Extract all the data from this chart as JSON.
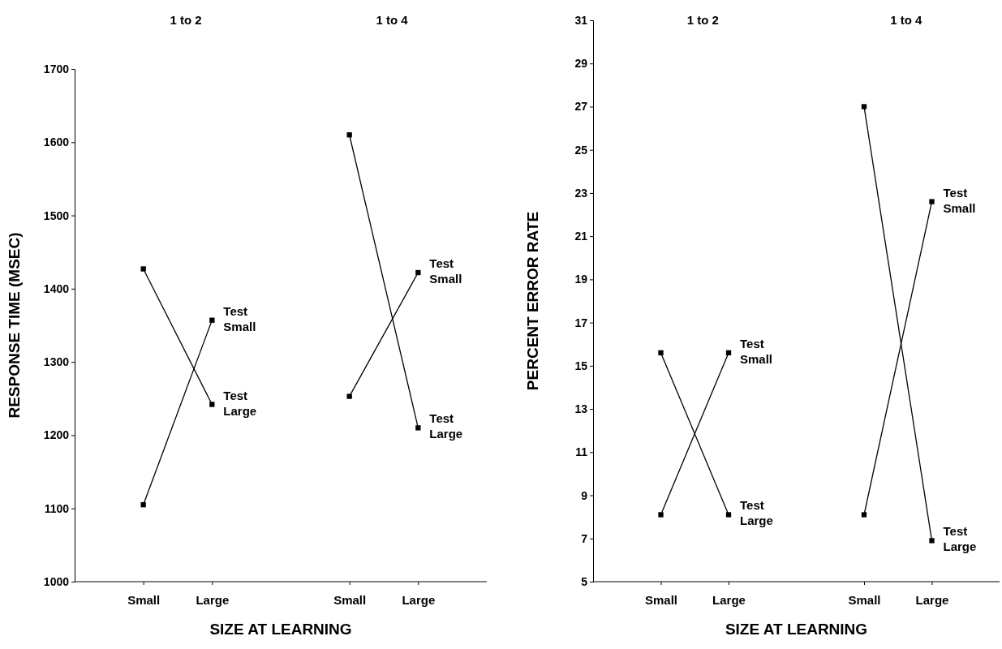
{
  "chart_data": [
    {
      "type": "line",
      "xlabel": "SIZE AT LEARNING",
      "ylabel": "RESPONSE TIME (MSEC)",
      "annotations": [
        "1 to 2",
        "1 to 4"
      ],
      "categories": [
        "Small",
        "Large",
        null,
        "Small",
        "Large"
      ],
      "ylim": [
        1000,
        1700
      ],
      "yticks": [
        1000,
        1100,
        1200,
        1300,
        1400,
        1500,
        1600,
        1700
      ],
      "grid": false,
      "marker": "square",
      "line_style": "solid",
      "series": [
        {
          "name": "Test Small",
          "color": "#000000",
          "values": [
            1105,
            1357,
            null,
            null,
            null
          ]
        },
        {
          "name": "Test Large",
          "color": "#000000",
          "values": [
            1427,
            1242,
            null,
            null,
            null
          ]
        },
        {
          "name": "Test Small",
          "color": "#000000",
          "values": [
            null,
            null,
            null,
            1253,
            1422
          ]
        },
        {
          "name": "Test Large",
          "color": "#000000",
          "values": [
            null,
            null,
            null,
            1610,
            1210
          ]
        }
      ]
    },
    {
      "type": "line",
      "xlabel": "SIZE AT LEARNING",
      "ylabel": "PERCENT ERROR RATE",
      "annotations": [
        "1 to 2",
        "1 to 4"
      ],
      "categories": [
        "Small",
        "Large",
        null,
        "Small",
        "Large"
      ],
      "ylim": [
        5,
        31
      ],
      "yticks": [
        5,
        7,
        9,
        11,
        13,
        15,
        17,
        19,
        21,
        23,
        25,
        27,
        29,
        31
      ],
      "grid": false,
      "marker": "square",
      "line_style": "solid",
      "series": [
        {
          "name": "Test Small",
          "color": "#000000",
          "values": [
            8.1,
            15.6,
            null,
            null,
            null
          ]
        },
        {
          "name": "Test Large",
          "color": "#000000",
          "values": [
            15.6,
            8.1,
            null,
            null,
            null
          ]
        },
        {
          "name": "Test Small",
          "color": "#000000",
          "values": [
            null,
            null,
            null,
            8.1,
            22.6
          ]
        },
        {
          "name": "Test Large",
          "color": "#000000",
          "values": [
            null,
            null,
            null,
            27,
            6.9
          ]
        }
      ]
    }
  ]
}
